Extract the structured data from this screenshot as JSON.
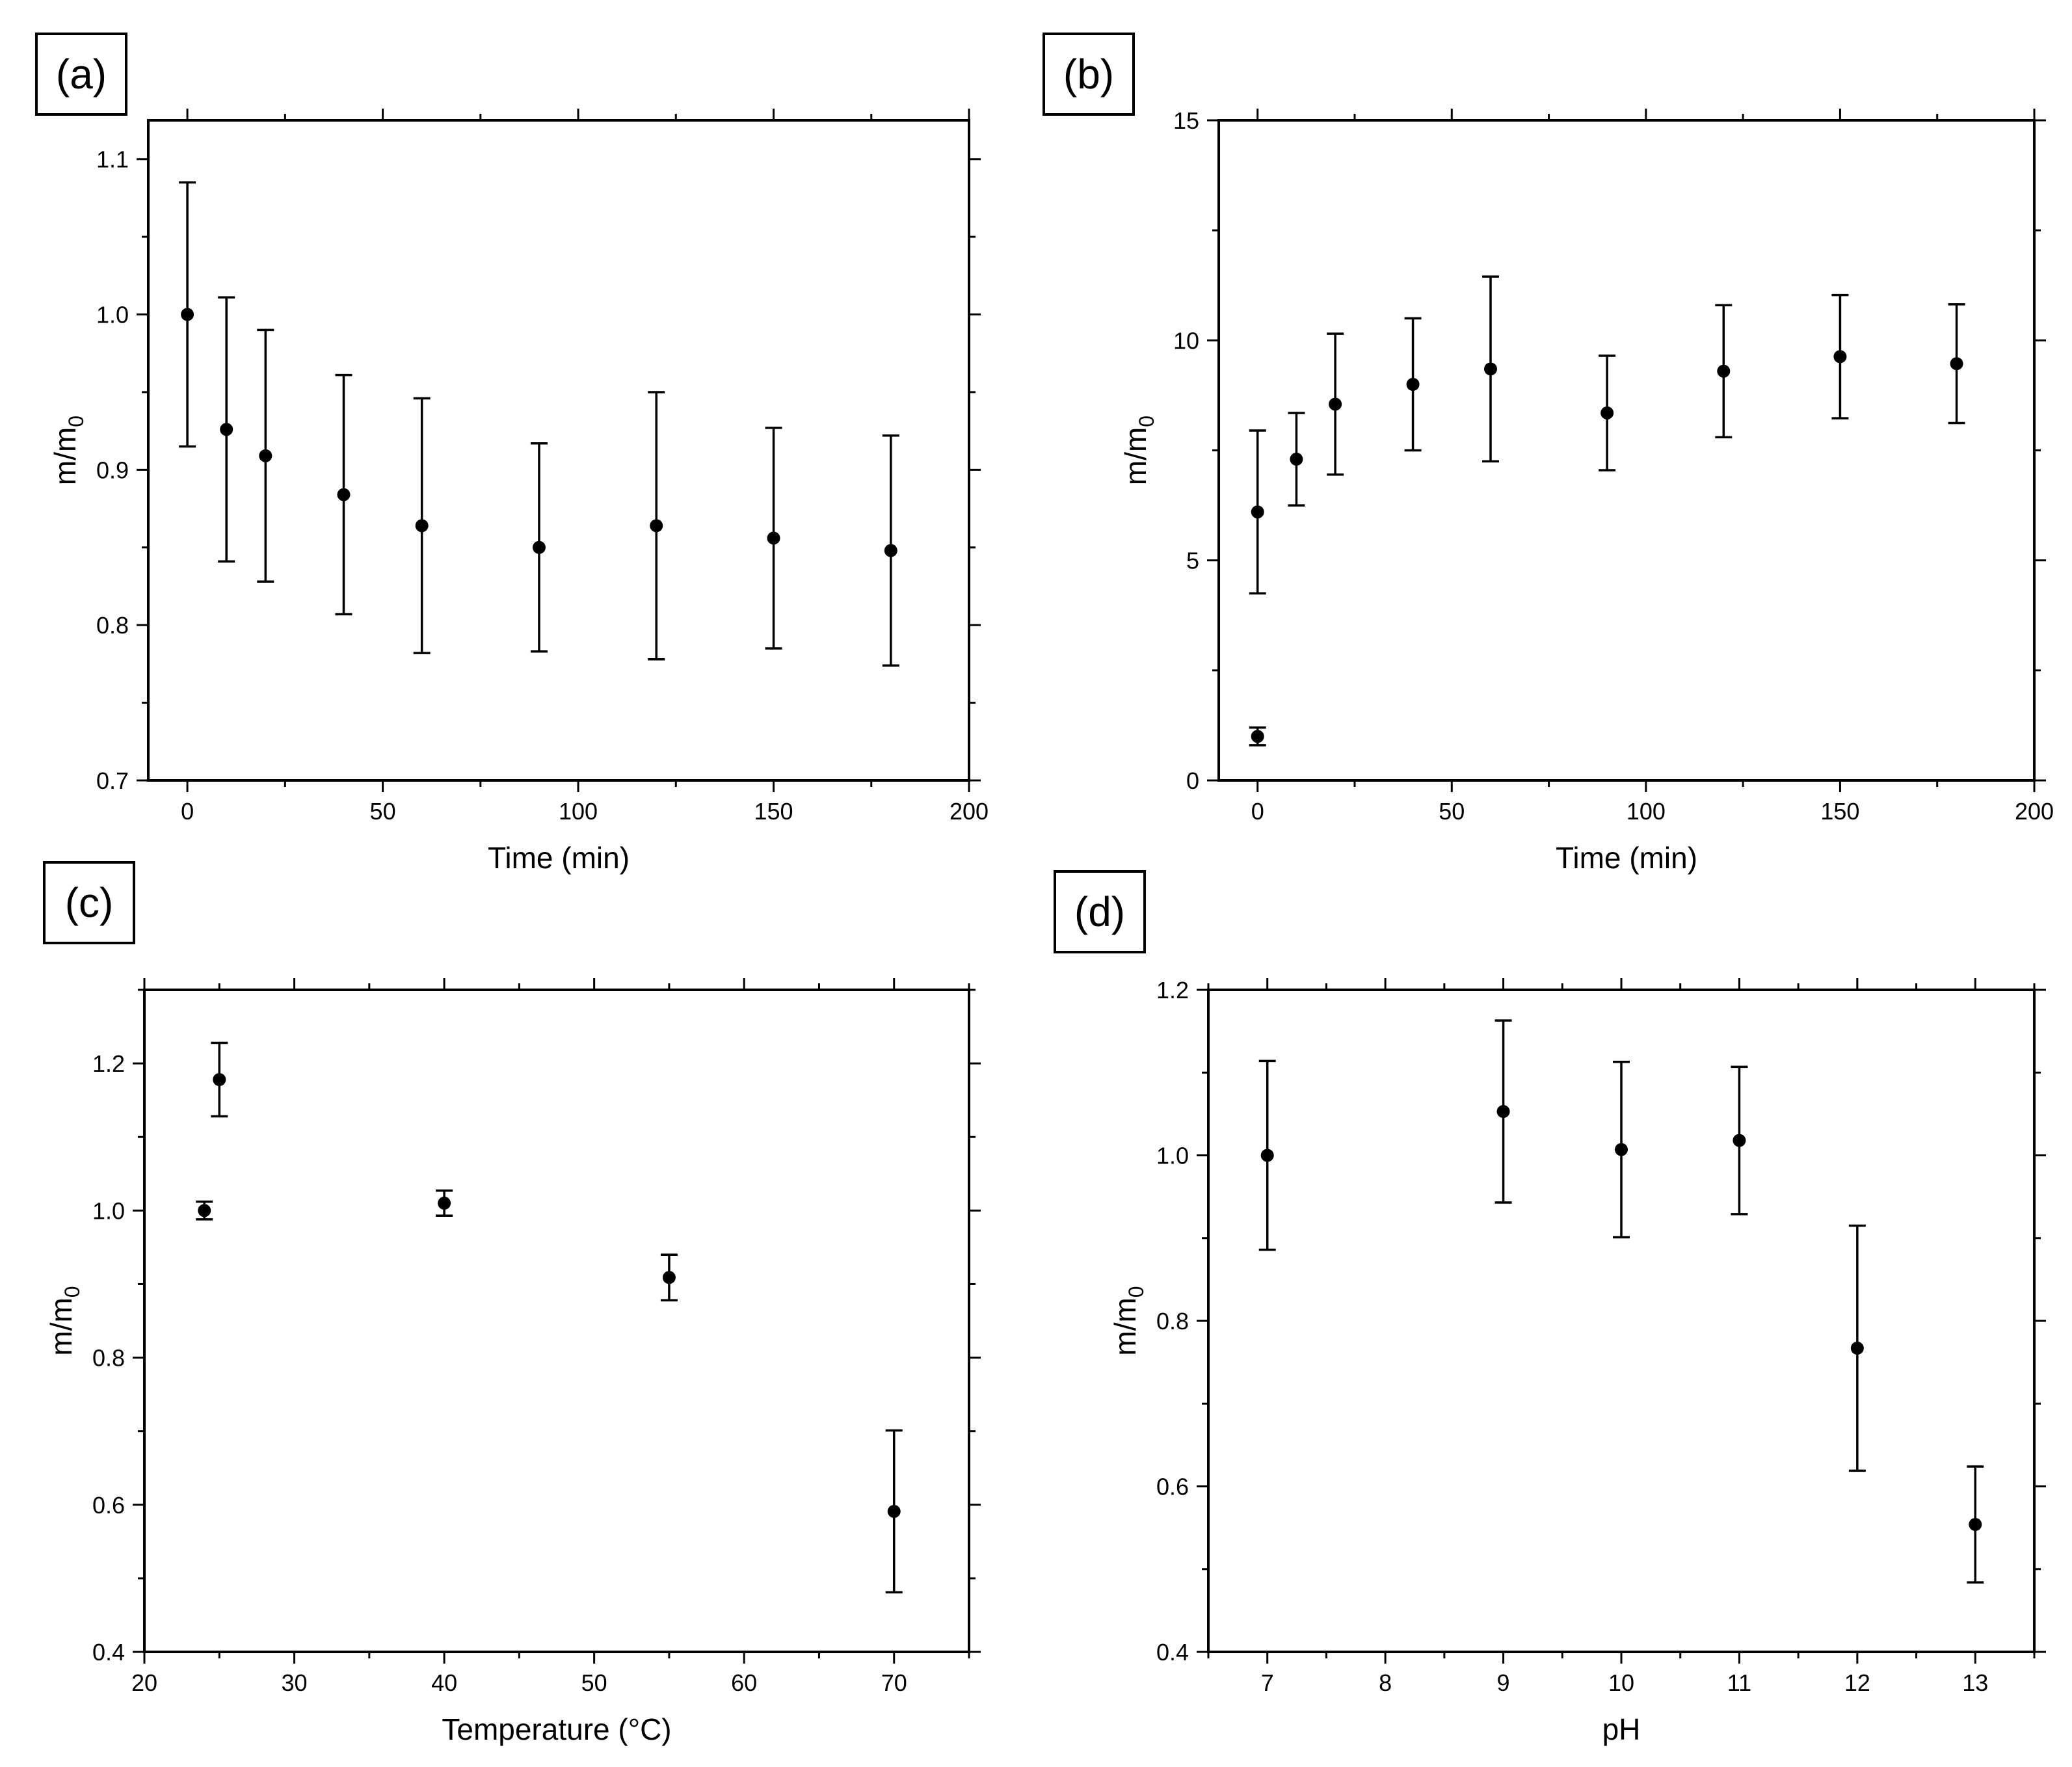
{
  "chart_data": [
    {
      "panel": "(a)",
      "type": "scatter",
      "xlabel": "Time (min)",
      "ylabel": "m/m",
      "ylabel_sub": "0",
      "xlim": [
        -10,
        200
      ],
      "ylim": [
        0.7,
        1.125
      ],
      "xticks": [
        0,
        50,
        100,
        150,
        200
      ],
      "yticks": [
        0.7,
        0.8,
        0.9,
        1.0,
        1.1
      ],
      "xtick_labels": [
        "0",
        "50",
        "100",
        "150",
        "200"
      ],
      "ytick_labels": [
        "0.7",
        "0.8",
        "0.9",
        "1.0",
        "1.1"
      ],
      "x": [
        0,
        10,
        20,
        40,
        60,
        90,
        120,
        150,
        180
      ],
      "y": [
        1.0,
        0.926,
        0.909,
        0.884,
        0.864,
        0.85,
        0.864,
        0.856,
        0.848
      ],
      "err": [
        0.085,
        0.085,
        0.081,
        0.077,
        0.082,
        0.067,
        0.086,
        0.071,
        0.074
      ]
    },
    {
      "panel": "(b)",
      "type": "scatter",
      "xlabel": "Time (min)",
      "ylabel": "m/m",
      "ylabel_sub": "0",
      "xlim": [
        -10,
        200
      ],
      "ylim": [
        0,
        15
      ],
      "xticks": [
        0,
        50,
        100,
        150,
        200
      ],
      "yticks": [
        0,
        5,
        10,
        15
      ],
      "xtick_labels": [
        "0",
        "50",
        "100",
        "150",
        "200"
      ],
      "ytick_labels": [
        "0",
        "5",
        "10",
        "15"
      ],
      "x": [
        0,
        0,
        10,
        20,
        40,
        60,
        90,
        120,
        150,
        180
      ],
      "y": [
        1.0,
        6.1,
        7.3,
        8.55,
        9.0,
        9.35,
        8.35,
        9.3,
        9.63,
        9.47
      ],
      "err": [
        0.2,
        1.85,
        1.05,
        1.6,
        1.5,
        2.1,
        1.3,
        1.5,
        1.4,
        1.35
      ]
    },
    {
      "panel": "(c)",
      "type": "scatter",
      "xlabel": "Temperature (°C)",
      "ylabel": "m/m",
      "ylabel_sub": "0",
      "xlim": [
        20,
        75
      ],
      "ylim": [
        0.4,
        1.3
      ],
      "xticks": [
        20,
        30,
        40,
        50,
        60,
        70
      ],
      "yticks": [
        0.4,
        0.6,
        0.8,
        1.0,
        1.2
      ],
      "xtick_labels": [
        "20",
        "30",
        "40",
        "50",
        "60",
        "70"
      ],
      "ytick_labels": [
        "0.4",
        "0.6",
        "0.8",
        "1.0",
        "1.2"
      ],
      "x": [
        24,
        25,
        40,
        55,
        70
      ],
      "y": [
        1.0,
        1.178,
        1.01,
        0.909,
        0.591
      ],
      "err": [
        0.012,
        0.05,
        0.017,
        0.031,
        0.11
      ]
    },
    {
      "panel": "(d)",
      "type": "scatter",
      "xlabel": "pH",
      "ylabel": "m/m",
      "ylabel_sub": "0",
      "xlim": [
        6.5,
        13.5
      ],
      "ylim": [
        0.4,
        1.2
      ],
      "xticks": [
        7,
        8,
        9,
        10,
        11,
        12,
        13
      ],
      "yticks": [
        0.4,
        0.6,
        0.8,
        1.0,
        1.2
      ],
      "xtick_labels": [
        "7",
        "8",
        "9",
        "10",
        "11",
        "12",
        "13"
      ],
      "ytick_labels": [
        "0.4",
        "0.6",
        "0.8",
        "1.0",
        "1.2"
      ],
      "x": [
        7,
        9,
        10,
        11,
        12,
        13
      ],
      "y": [
        1.0,
        1.053,
        1.007,
        1.018,
        0.767,
        0.554
      ],
      "err": [
        0.114,
        0.11,
        0.106,
        0.089,
        0.148,
        0.07
      ]
    }
  ]
}
